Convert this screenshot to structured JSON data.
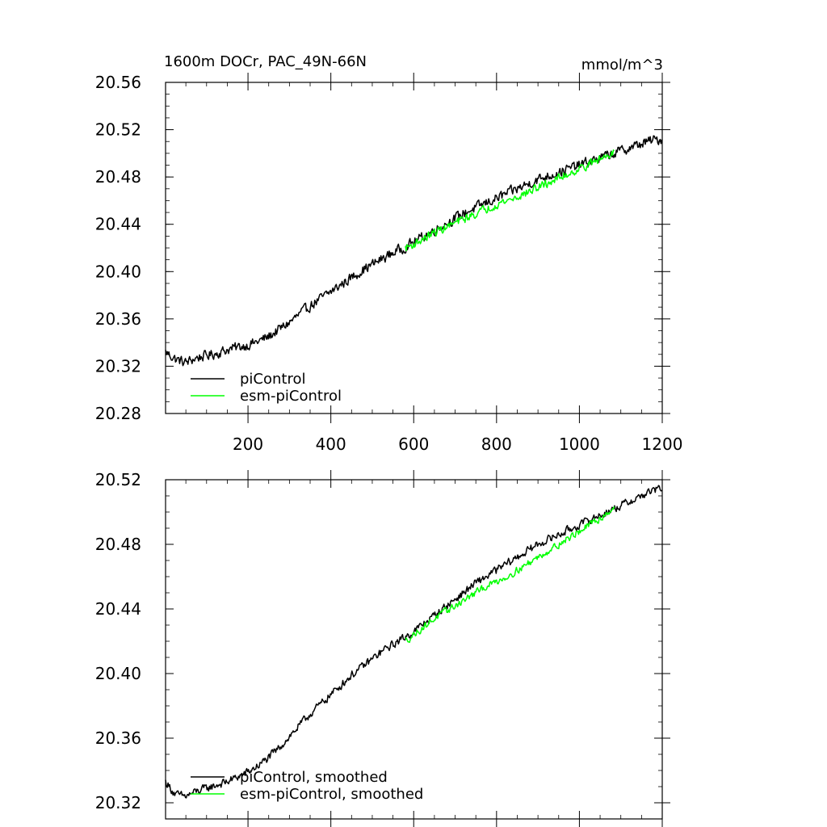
{
  "chart_data": [
    {
      "type": "line",
      "title": "1600m DOCr, PAC_49N-66N",
      "units": "mmol/m^3",
      "xlabel": "",
      "ylabel": "",
      "xlim": [
        1,
        1200
      ],
      "ylim": [
        20.28,
        20.56
      ],
      "x_ticks": [
        200,
        400,
        600,
        800,
        1000,
        1200
      ],
      "x_tick_labels": [
        "200",
        "400",
        "600",
        "800",
        "1000",
        "1200"
      ],
      "y_ticks": [
        20.28,
        20.32,
        20.36,
        20.4,
        20.44,
        20.48,
        20.52,
        20.56
      ],
      "y_tick_labels": [
        "20.28",
        "20.32",
        "20.36",
        "20.40",
        "20.44",
        "20.48",
        "20.52",
        "20.56"
      ],
      "grid": false,
      "legend_position": "bottom-left",
      "series": [
        {
          "name": "piControl",
          "color": "#000000",
          "x": [
            1,
            25,
            50,
            75,
            100,
            125,
            150,
            175,
            200,
            225,
            250,
            275,
            300,
            325,
            350,
            375,
            400,
            425,
            450,
            475,
            500,
            525,
            550,
            575,
            600,
            625,
            650,
            675,
            700,
            725,
            750,
            775,
            800,
            825,
            850,
            875,
            900,
            925,
            950,
            975,
            1000,
            1025,
            1050,
            1075,
            1100,
            1125,
            1150,
            1175,
            1200
          ],
          "y": [
            20.332,
            20.326,
            20.323,
            20.327,
            20.329,
            20.331,
            20.334,
            20.336,
            20.338,
            20.341,
            20.345,
            20.351,
            20.357,
            20.364,
            20.371,
            20.377,
            20.383,
            20.389,
            20.395,
            20.401,
            20.406,
            20.411,
            20.416,
            20.42,
            20.425,
            20.43,
            20.435,
            20.44,
            20.445,
            20.45,
            20.454,
            20.458,
            20.462,
            20.466,
            20.47,
            20.474,
            20.478,
            20.481,
            20.484,
            20.487,
            20.49,
            20.493,
            20.496,
            20.499,
            20.502,
            20.505,
            20.508,
            20.511,
            20.512
          ],
          "noise": 0.006
        },
        {
          "name": "esm-piControl",
          "color": "#00ff00",
          "x": [
            580,
            600,
            625,
            650,
            675,
            700,
            725,
            750,
            775,
            800,
            825,
            850,
            875,
            900,
            925,
            950,
            975,
            1000,
            1025,
            1050,
            1075,
            1085
          ],
          "y": [
            20.42,
            20.423,
            20.428,
            20.433,
            20.437,
            20.441,
            20.445,
            20.449,
            20.453,
            20.457,
            20.46,
            20.463,
            20.467,
            20.471,
            20.475,
            20.479,
            20.483,
            20.487,
            20.491,
            20.495,
            20.5,
            20.503
          ],
          "noise": 0.005
        }
      ]
    },
    {
      "type": "line",
      "title": "",
      "xlabel": "",
      "ylabel": "",
      "xlim": [
        1,
        1200
      ],
      "ylim": [
        20.31,
        20.52
      ],
      "x_ticks": [
        200,
        400,
        600,
        800,
        1000,
        1200
      ],
      "y_ticks": [
        20.32,
        20.36,
        20.4,
        20.44,
        20.48,
        20.52
      ],
      "y_tick_labels": [
        "20.32",
        "20.36",
        "20.40",
        "20.44",
        "20.48",
        "20.52"
      ],
      "grid": false,
      "legend_position": "bottom-left",
      "series": [
        {
          "name": "piControl, smoothed",
          "color": "#000000",
          "x": [
            1,
            25,
            50,
            75,
            100,
            125,
            150,
            175,
            200,
            225,
            250,
            275,
            300,
            325,
            350,
            375,
            400,
            425,
            450,
            475,
            500,
            525,
            550,
            575,
            600,
            625,
            650,
            675,
            700,
            725,
            750,
            775,
            800,
            825,
            850,
            875,
            900,
            925,
            950,
            975,
            1000,
            1025,
            1050,
            1075,
            1100,
            1125,
            1150,
            1175,
            1200
          ],
          "y": [
            20.333,
            20.325,
            20.324,
            20.327,
            20.329,
            20.331,
            20.333,
            20.336,
            20.339,
            20.343,
            20.348,
            20.354,
            20.361,
            20.368,
            20.375,
            20.381,
            20.387,
            20.393,
            20.399,
            20.404,
            20.409,
            20.414,
            20.418,
            20.422,
            20.426,
            20.431,
            20.436,
            20.441,
            20.446,
            20.451,
            20.456,
            20.46,
            20.464,
            20.468,
            20.472,
            20.476,
            20.48,
            20.483,
            20.486,
            20.489,
            20.492,
            20.495,
            20.498,
            20.501,
            20.504,
            20.507,
            20.51,
            20.513,
            20.515
          ],
          "noise": 0.0035
        },
        {
          "name": "esm-piControl, smoothed",
          "color": "#00ff00",
          "x": [
            580,
            600,
            625,
            650,
            675,
            700,
            725,
            750,
            775,
            800,
            825,
            850,
            875,
            900,
            925,
            950,
            975,
            1000,
            1025,
            1050,
            1075,
            1085
          ],
          "y": [
            20.42,
            20.424,
            20.429,
            20.434,
            20.438,
            20.442,
            20.446,
            20.45,
            20.454,
            20.457,
            20.46,
            20.464,
            20.468,
            20.472,
            20.476,
            20.48,
            20.484,
            20.488,
            20.492,
            20.496,
            20.501,
            20.503
          ],
          "noise": 0.003
        }
      ]
    }
  ]
}
